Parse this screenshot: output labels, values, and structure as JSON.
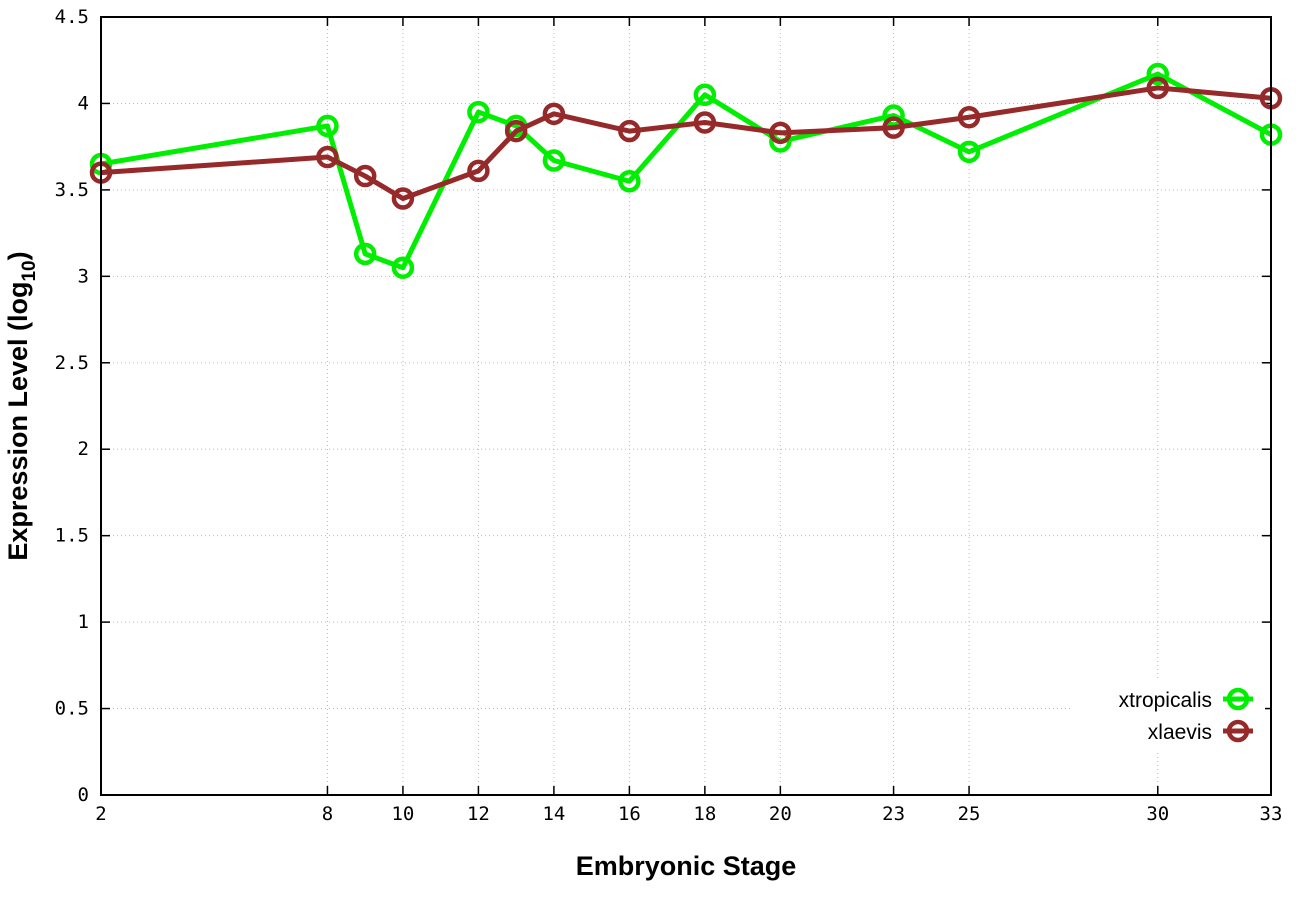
{
  "chart_data": {
    "type": "line",
    "title": "",
    "xlabel": "Embryonic Stage",
    "ylabel": "Expression Level (log",
    "ylabel_subscript": "10",
    "ylabel_suffix": ")",
    "xlim": [
      2,
      33
    ],
    "ylim": [
      0,
      4.5
    ],
    "xticks": [
      2,
      8,
      10,
      12,
      14,
      16,
      18,
      20,
      23,
      25,
      30,
      33
    ],
    "yticks": [
      "0",
      "0.5",
      "1",
      "1.5",
      "2",
      "2.5",
      "3",
      "3.5",
      "4",
      "4.5"
    ],
    "grid": true,
    "legend_position": "bottom-right",
    "x": [
      2,
      8,
      9,
      10,
      12,
      13,
      14,
      16,
      18,
      20,
      23,
      25,
      30,
      33
    ],
    "series": [
      {
        "name": "xtropicalis",
        "color": "#00ee00",
        "values": [
          3.65,
          3.87,
          3.13,
          3.05,
          3.95,
          3.87,
          3.67,
          3.55,
          4.05,
          3.78,
          3.93,
          3.72,
          4.17,
          3.82
        ]
      },
      {
        "name": "xlaevis",
        "color": "#962a2a",
        "values": [
          3.6,
          3.69,
          3.58,
          3.45,
          3.61,
          3.84,
          3.94,
          3.84,
          3.89,
          3.83,
          3.86,
          3.92,
          4.09,
          4.03
        ]
      }
    ]
  }
}
